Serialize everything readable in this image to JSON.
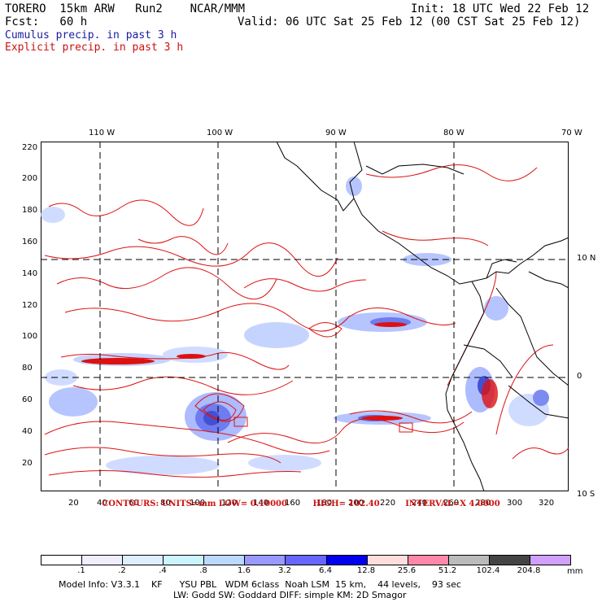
{
  "header": {
    "model": "TORERO  15km ARW   Run2    NCAR/MMM",
    "init": "Init: 18 UTC Wed 22 Feb 12",
    "fcst": "Fcst:   60 h",
    "valid": "Valid: 06 UTC Sat 25 Feb 12 (00 CST Sat 25 Feb 12)",
    "cumulus": "Cumulus precip. in past 3 h",
    "explicit": "Explicit precip. in past 3 h"
  },
  "top_labels": [
    "110 W",
    "100 W",
    "90 W",
    "80 W",
    "70 W"
  ],
  "right_labels": [
    "10 N",
    "0",
    "10 S"
  ],
  "y_ticks": [
    "220",
    "200",
    "180",
    "160",
    "140",
    "120",
    "100",
    "80",
    "60",
    "40",
    "20"
  ],
  "x_ticks": [
    "20",
    "40",
    "60",
    "80",
    "100",
    "120",
    "140",
    "160",
    "180",
    "200",
    "220",
    "240",
    "260",
    "280",
    "300",
    "320"
  ],
  "contours": {
    "units": "CONTOURS:  UNITS=mm  LOW= 0.10000",
    "high": "HIGH=  102.40",
    "interval": "INTERVAL=X  4.0000"
  },
  "legend": {
    "labels": [
      ".1",
      ".2",
      ".4",
      ".8",
      "1.6",
      "3.2",
      "6.4",
      "12.8",
      "25.6",
      "51.2",
      "102.4",
      "204.8"
    ],
    "colors": [
      "#ffffff",
      "#eeeeff",
      "#ddeeff",
      "#ccf4ff",
      "#bbd8ff",
      "#9999ff",
      "#6666ff",
      "#0000ee",
      "#ffdddd",
      "#ff88aa",
      "#bbbbbb",
      "#444444",
      "#d0a0ff"
    ],
    "units": "mm"
  },
  "footer": {
    "line1": "Model Info: V3.3.1    KF      YSU PBL   WDM 6class  Noah LSM  15 km,    44 levels,    93 sec",
    "line2": "LW: Godd SW: Goddard DIFF: simple KM: 2D Smagor"
  }
}
